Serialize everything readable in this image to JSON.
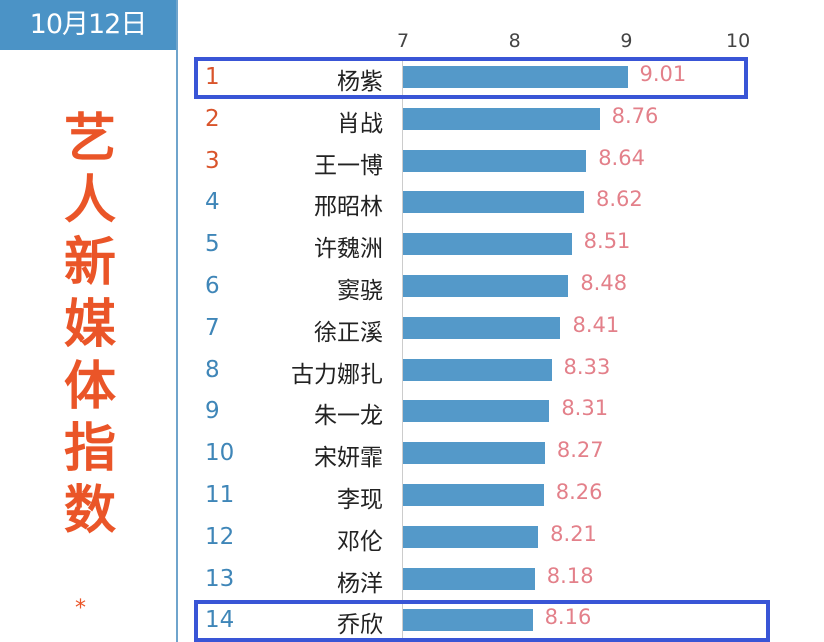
{
  "header": {
    "date": "10月12日",
    "title_chars": [
      "艺",
      "人",
      "新",
      "媒",
      "体",
      "指",
      "数"
    ],
    "footnote_mark": "*"
  },
  "colors": {
    "bar": "#5499c9",
    "top_rank": "#d9542b",
    "rank": "#3f86b8",
    "value": "#e3808a",
    "highlight": "#3955d6",
    "date_bg": "#4b93c6",
    "title": "#ea5528"
  },
  "chart_data": {
    "type": "bar",
    "orientation": "horizontal",
    "xlim": [
      7,
      10
    ],
    "xticks": [
      "7",
      "8",
      "9",
      "10"
    ],
    "ranks": [
      "1",
      "2",
      "3",
      "4",
      "5",
      "6",
      "7",
      "8",
      "9",
      "10",
      "11",
      "12",
      "13",
      "14"
    ],
    "categories": [
      "杨紫",
      "肖战",
      "王一博",
      "邢昭林",
      "许魏洲",
      "窦骁",
      "徐正溪",
      "古力娜扎",
      "朱一龙",
      "宋妍霏",
      "李现",
      "邓伦",
      "杨洋",
      "乔欣"
    ],
    "values": [
      9.01,
      8.76,
      8.64,
      8.62,
      8.51,
      8.48,
      8.41,
      8.33,
      8.31,
      8.27,
      8.26,
      8.21,
      8.18,
      8.16
    ],
    "labels": [
      "9.01",
      "8.76",
      "8.64",
      "8.62",
      "8.51",
      "8.48",
      "8.41",
      "8.33",
      "8.31",
      "8.27",
      "8.26",
      "8.21",
      "8.18",
      "8.16"
    ],
    "highlighted_ranks": [
      "1",
      "14"
    ]
  }
}
